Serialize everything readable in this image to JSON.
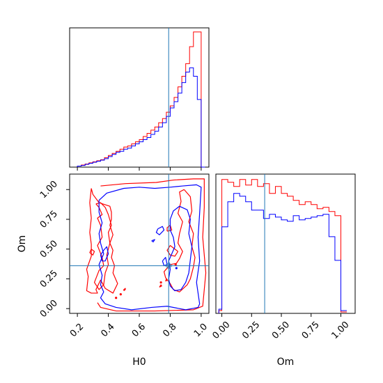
{
  "chart_data": {
    "type": "corner",
    "parameters": [
      "H0",
      "Om"
    ],
    "truth": {
      "H0": 0.79,
      "Om": 0.36
    },
    "colors": {
      "red": "#ff0000",
      "blue": "#0000ff",
      "truth": "#1f77b4"
    },
    "axes": {
      "h0_hist": {
        "xlim": [
          0.15,
          1.05
        ],
        "show_tick_labels": false
      },
      "om_hist": {
        "xlim": [
          -0.05,
          1.12
        ],
        "xlabel": "Om",
        "xticks": [
          0.0,
          0.25,
          0.5,
          0.75,
          1.0
        ],
        "xtick_labels": [
          "0.00",
          "0.25",
          "0.50",
          "0.75",
          "1.00"
        ]
      },
      "joint": {
        "xlim": [
          0.15,
          1.05
        ],
        "ylim": [
          -0.04,
          1.13
        ],
        "xlabel": "H0",
        "ylabel": "Om",
        "xticks": [
          0.2,
          0.4,
          0.6,
          0.8,
          1.0
        ],
        "xtick_labels": [
          "0.2",
          "0.4",
          "0.6",
          "0.8",
          "1.0"
        ],
        "yticks": [
          0.0,
          0.25,
          0.5,
          0.75,
          1.0
        ],
        "ytick_labels": [
          "0.00",
          "0.25",
          "0.50",
          "0.75",
          "1.00"
        ]
      }
    },
    "series": [
      {
        "color": "red",
        "h0_hist": {
          "edges": [
            0.2,
            0.225,
            0.25,
            0.275,
            0.3,
            0.325,
            0.35,
            0.375,
            0.4,
            0.425,
            0.45,
            0.475,
            0.5,
            0.525,
            0.55,
            0.575,
            0.6,
            0.625,
            0.65,
            0.675,
            0.7,
            0.725,
            0.75,
            0.775,
            0.8,
            0.825,
            0.85,
            0.875,
            0.9,
            0.925,
            0.95,
            0.975,
            1.0,
            1.025
          ],
          "counts": [
            0.5,
            1,
            1.5,
            2,
            2.5,
            3,
            3.5,
            4.5,
            5.5,
            6.5,
            7.5,
            8.5,
            9.5,
            10,
            11,
            12,
            13,
            14.5,
            16,
            17.5,
            19,
            21,
            23,
            26,
            29,
            33,
            38,
            43,
            49,
            57,
            64,
            64,
            0
          ]
        },
        "om_hist": {
          "edges": [
            -0.025,
            0.0,
            0.05,
            0.1,
            0.15,
            0.2,
            0.25,
            0.3,
            0.35,
            0.4,
            0.45,
            0.5,
            0.55,
            0.6,
            0.65,
            0.7,
            0.75,
            0.8,
            0.85,
            0.9,
            0.95,
            1.0,
            1.05
          ],
          "counts": [
            2,
            96,
            94,
            91,
            96,
            92,
            96,
            91,
            93,
            86,
            91,
            86,
            84,
            81,
            78,
            80,
            78,
            75,
            76,
            73,
            70,
            1
          ]
        },
        "contours": [
          [
            [
              0.29,
              1.01
            ],
            [
              0.3,
              0.96
            ],
            [
              0.34,
              0.89
            ],
            [
              0.41,
              0.86
            ],
            [
              0.42,
              0.81
            ],
            [
              0.42,
              0.75
            ],
            [
              0.41,
              0.7
            ],
            [
              0.43,
              0.62
            ],
            [
              0.41,
              0.55
            ],
            [
              0.43,
              0.49
            ],
            [
              0.42,
              0.43
            ],
            [
              0.44,
              0.36
            ],
            [
              0.43,
              0.3
            ],
            [
              0.46,
              0.21
            ],
            [
              0.43,
              0.13
            ],
            [
              0.38,
              0.17
            ],
            [
              0.35,
              0.24
            ],
            [
              0.32,
              0.16
            ],
            [
              0.33,
              0.13
            ],
            [
              0.29,
              0.13
            ],
            [
              0.26,
              0.15
            ],
            [
              0.27,
              0.27
            ],
            [
              0.26,
              0.33
            ],
            [
              0.29,
              0.44
            ],
            [
              0.29,
              0.54
            ],
            [
              0.28,
              0.64
            ],
            [
              0.29,
              0.76
            ],
            [
              0.28,
              0.89
            ],
            [
              0.29,
              1.01
            ]
          ],
          [
            [
              0.35,
              1.03
            ],
            [
              0.51,
              1.05
            ],
            [
              0.71,
              1.06
            ],
            [
              0.82,
              1.08
            ],
            [
              0.95,
              1.09
            ],
            [
              1.02,
              1.09
            ],
            [
              1.02,
              0.85
            ],
            [
              1.01,
              0.6
            ],
            [
              1.03,
              0.3
            ],
            [
              1.01,
              0.02
            ],
            [
              0.95,
              -0.01
            ],
            [
              0.7,
              -0.02
            ],
            [
              0.45,
              -0.02
            ],
            [
              0.35,
              0.01
            ],
            [
              0.33,
              0.05
            ]
          ],
          [
            [
              0.32,
              0.88
            ],
            [
              0.34,
              0.85
            ],
            [
              0.36,
              0.79
            ],
            [
              0.33,
              0.76
            ],
            [
              0.35,
              0.7
            ],
            [
              0.36,
              0.6
            ],
            [
              0.33,
              0.53
            ],
            [
              0.36,
              0.43
            ],
            [
              0.37,
              0.36
            ],
            [
              0.34,
              0.32
            ],
            [
              0.31,
              0.22
            ],
            [
              0.34,
              0.16
            ],
            [
              0.37,
              0.2
            ],
            [
              0.38,
              0.3
            ],
            [
              0.4,
              0.37
            ],
            [
              0.39,
              0.45
            ],
            [
              0.41,
              0.55
            ],
            [
              0.4,
              0.64
            ],
            [
              0.42,
              0.7
            ],
            [
              0.4,
              0.79
            ],
            [
              0.38,
              0.85
            ],
            [
              0.35,
              0.89
            ],
            [
              0.32,
              0.88
            ]
          ],
          [
            [
              0.89,
              1.0
            ],
            [
              0.93,
              0.94
            ],
            [
              0.94,
              0.82
            ],
            [
              0.92,
              0.73
            ],
            [
              0.95,
              0.63
            ],
            [
              0.94,
              0.52
            ],
            [
              0.96,
              0.43
            ],
            [
              0.95,
              0.35
            ],
            [
              0.93,
              0.25
            ],
            [
              0.91,
              0.2
            ],
            [
              0.86,
              0.14
            ],
            [
              0.82,
              0.16
            ],
            [
              0.8,
              0.21
            ],
            [
              0.77,
              0.26
            ],
            [
              0.76,
              0.31
            ],
            [
              0.8,
              0.37
            ],
            [
              0.84,
              0.38
            ],
            [
              0.86,
              0.42
            ],
            [
              0.88,
              0.48
            ],
            [
              0.85,
              0.55
            ],
            [
              0.86,
              0.63
            ],
            [
              0.88,
              0.73
            ],
            [
              0.85,
              0.8
            ],
            [
              0.87,
              0.9
            ],
            [
              0.86,
              0.98
            ],
            [
              0.89,
              1.0
            ]
          ],
          [
            [
              0.85,
              0.48
            ],
            [
              0.82,
              0.51
            ],
            [
              0.8,
              0.53
            ],
            [
              0.78,
              0.49
            ],
            [
              0.8,
              0.45
            ],
            [
              0.83,
              0.44
            ],
            [
              0.85,
              0.48
            ]
          ],
          [
            [
              0.78,
              0.65
            ],
            [
              0.81,
              0.66
            ],
            [
              0.8,
              0.7
            ],
            [
              0.78,
              0.68
            ],
            [
              0.78,
              0.65
            ]
          ],
          [
            [
              0.29,
              0.5
            ],
            [
              0.28,
              0.47
            ],
            [
              0.3,
              0.45
            ],
            [
              0.31,
              0.48
            ],
            [
              0.29,
              0.5
            ]
          ],
          [
            [
              0.5,
              0.15
            ],
            [
              0.51,
              0.16
            ],
            [
              0.51,
              0.17
            ],
            [
              0.5,
              0.16
            ],
            [
              0.5,
              0.15
            ]
          ],
          [
            [
              0.73,
              0.18
            ],
            [
              0.745,
              0.19
            ],
            [
              0.74,
              0.2
            ],
            [
              0.73,
              0.18
            ]
          ],
          [
            [
              0.77,
              0.23
            ],
            [
              0.78,
              0.24
            ],
            [
              0.775,
              0.25
            ],
            [
              0.77,
              0.23
            ]
          ]
        ],
        "dots": [
          [
            0.45,
            0.09
          ],
          [
            0.48,
            0.12
          ],
          [
            0.74,
            0.22
          ],
          [
            0.835,
            0.37
          ]
        ]
      },
      {
        "color": "blue",
        "h0_hist": {
          "edges": [
            0.2,
            0.225,
            0.25,
            0.275,
            0.3,
            0.325,
            0.35,
            0.375,
            0.4,
            0.425,
            0.45,
            0.475,
            0.5,
            0.525,
            0.55,
            0.575,
            0.6,
            0.625,
            0.65,
            0.675,
            0.7,
            0.725,
            0.75,
            0.775,
            0.8,
            0.825,
            0.85,
            0.875,
            0.9,
            0.925,
            0.95,
            0.975,
            1.0,
            1.025
          ],
          "counts": [
            0.5,
            0.8,
            1.3,
            1.8,
            2.3,
            2.8,
            3.3,
            4,
            5,
            6,
            7,
            7.5,
            8.5,
            9,
            10,
            11,
            12,
            13,
            14,
            15.5,
            17,
            19,
            21,
            24,
            28,
            31,
            35,
            40,
            45,
            47,
            43,
            32,
            0
          ]
        },
        "om_hist": {
          "edges": [
            -0.025,
            0.0,
            0.05,
            0.1,
            0.15,
            0.2,
            0.25,
            0.3,
            0.35,
            0.4,
            0.45,
            0.5,
            0.55,
            0.6,
            0.65,
            0.7,
            0.75,
            0.8,
            0.85,
            0.9,
            0.95,
            1.0,
            1.05
          ],
          "counts": [
            3,
            62,
            80,
            86,
            84,
            80,
            74,
            74,
            68,
            71,
            69,
            67,
            66,
            70,
            67,
            68,
            69,
            70,
            71,
            55,
            38,
            2
          ]
        },
        "contours": [
          [
            [
              0.34,
              0.91
            ],
            [
              0.39,
              0.97
            ],
            [
              0.5,
              1.01
            ],
            [
              0.6,
              1.02
            ],
            [
              0.7,
              1.01
            ],
            [
              0.8,
              1.02
            ],
            [
              0.88,
              1.03
            ],
            [
              0.97,
              1.04
            ],
            [
              1.0,
              1.02
            ],
            [
              0.99,
              0.8
            ],
            [
              0.98,
              0.6
            ],
            [
              0.99,
              0.4
            ],
            [
              0.97,
              0.22
            ],
            [
              0.99,
              0.04
            ],
            [
              0.98,
              0.01
            ],
            [
              0.9,
              -0.01
            ],
            [
              0.78,
              0.02
            ],
            [
              0.68,
              0.01
            ],
            [
              0.55,
              -0.01
            ],
            [
              0.45,
              0.01
            ],
            [
              0.38,
              0.04
            ],
            [
              0.35,
              0.09
            ],
            [
              0.37,
              0.14
            ],
            [
              0.35,
              0.2
            ],
            [
              0.36,
              0.28
            ],
            [
              0.34,
              0.37
            ],
            [
              0.37,
              0.46
            ],
            [
              0.35,
              0.55
            ],
            [
              0.34,
              0.63
            ],
            [
              0.36,
              0.72
            ],
            [
              0.34,
              0.81
            ],
            [
              0.34,
              0.91
            ]
          ],
          [
            [
              0.86,
              0.86
            ],
            [
              0.91,
              0.83
            ],
            [
              0.93,
              0.75
            ],
            [
              0.92,
              0.63
            ],
            [
              0.94,
              0.52
            ],
            [
              0.93,
              0.41
            ],
            [
              0.92,
              0.3
            ],
            [
              0.9,
              0.22
            ],
            [
              0.87,
              0.16
            ],
            [
              0.83,
              0.15
            ],
            [
              0.8,
              0.19
            ],
            [
              0.79,
              0.25
            ],
            [
              0.8,
              0.33
            ],
            [
              0.79,
              0.4
            ],
            [
              0.81,
              0.46
            ],
            [
              0.83,
              0.52
            ],
            [
              0.82,
              0.6
            ],
            [
              0.8,
              0.66
            ],
            [
              0.8,
              0.75
            ],
            [
              0.82,
              0.82
            ],
            [
              0.86,
              0.86
            ]
          ],
          [
            [
              0.35,
              0.45
            ],
            [
              0.37,
              0.49
            ],
            [
              0.39,
              0.52
            ],
            [
              0.4,
              0.46
            ],
            [
              0.38,
              0.4
            ],
            [
              0.36,
              0.4
            ],
            [
              0.35,
              0.45
            ]
          ],
          [
            [
              0.72,
              0.67
            ],
            [
              0.75,
              0.69
            ],
            [
              0.76,
              0.66
            ],
            [
              0.73,
              0.62
            ],
            [
              0.71,
              0.64
            ],
            [
              0.72,
              0.67
            ]
          ],
          [
            [
              0.75,
              0.4
            ],
            [
              0.77,
              0.43
            ],
            [
              0.78,
              0.37
            ],
            [
              0.76,
              0.36
            ],
            [
              0.75,
              0.4
            ]
          ],
          [
            [
              0.68,
              0.57
            ],
            [
              0.7,
              0.58
            ],
            [
              0.69,
              0.56
            ],
            [
              0.68,
              0.57
            ]
          ]
        ],
        "dots": [
          [
            0.84,
            0.34
          ]
        ]
      }
    ]
  }
}
